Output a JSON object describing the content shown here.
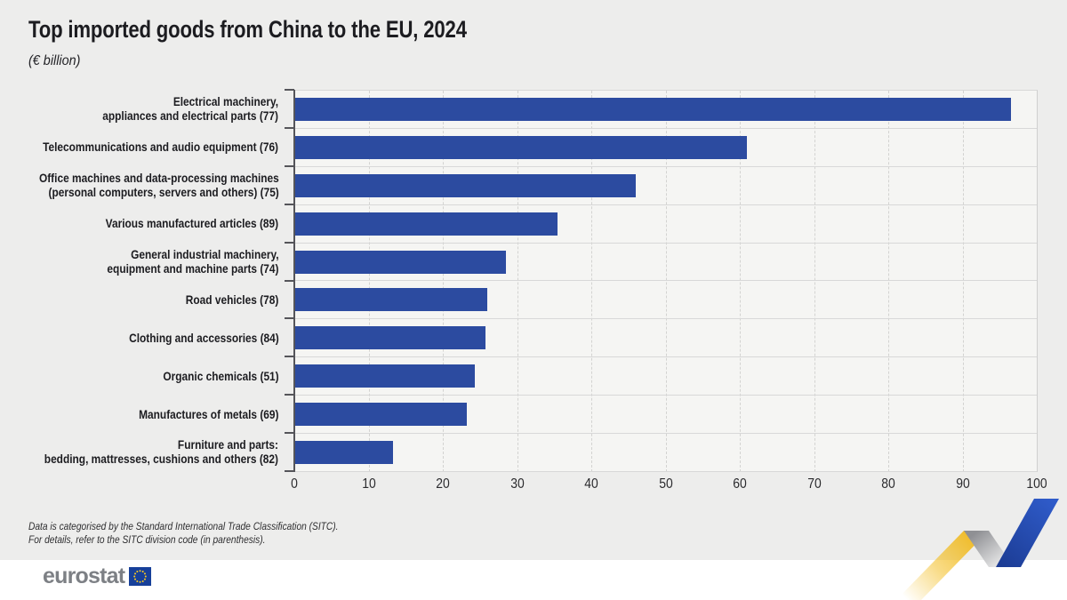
{
  "header": {
    "title": "Top imported goods from China to the EU, 2024",
    "subtitle": "(€ billion)"
  },
  "chart_data": {
    "type": "bar",
    "orientation": "horizontal",
    "title": "Top imported goods from China to the EU, 2024",
    "unit": "€ billion",
    "categories": [
      [
        "Electrical machinery,",
        "appliances and electrical parts (77)"
      ],
      [
        "Telecommunications and audio equipment (76)"
      ],
      [
        "Office machines and data-processing machines",
        "(personal computers, servers and others) (75)"
      ],
      [
        "Various manufactured articles (89)"
      ],
      [
        "General industrial machinery,",
        "equipment and machine parts (74)"
      ],
      [
        "Road vehicles (78)"
      ],
      [
        "Clothing and accessories (84)"
      ],
      [
        "Organic chemicals (51)"
      ],
      [
        "Manufactures of metals (69)"
      ],
      [
        "Furniture and parts:",
        "bedding, mattresses, cushions and others (82)"
      ]
    ],
    "values": [
      96.5,
      61,
      46,
      35.5,
      28.5,
      26,
      25.8,
      24.3,
      23.2,
      13.3
    ],
    "xlim": [
      0,
      100
    ],
    "xticks": [
      0,
      10,
      20,
      30,
      40,
      50,
      60,
      70,
      80,
      90,
      100
    ],
    "grid": "vertical-dashed-every-10",
    "legend": "none",
    "bar_color": "#2c4ba0"
  },
  "footnote": {
    "line1": "Data is categorised by the Standard International Trade Classification (SITC).",
    "line2": "For details, refer to the SITC division code (in parenthesis)."
  },
  "footer": {
    "logo_text": "eurostat"
  },
  "colors": {
    "bar_blue": "#2c4ba0",
    "ribbon_blue": "#2d57c8",
    "ribbon_yellow": "#f3be23",
    "ribbon_gray": "#97979b",
    "eu_flag_blue": "#17409a",
    "eu_star_yellow": "#ffcc1f",
    "background": "#ededec"
  }
}
